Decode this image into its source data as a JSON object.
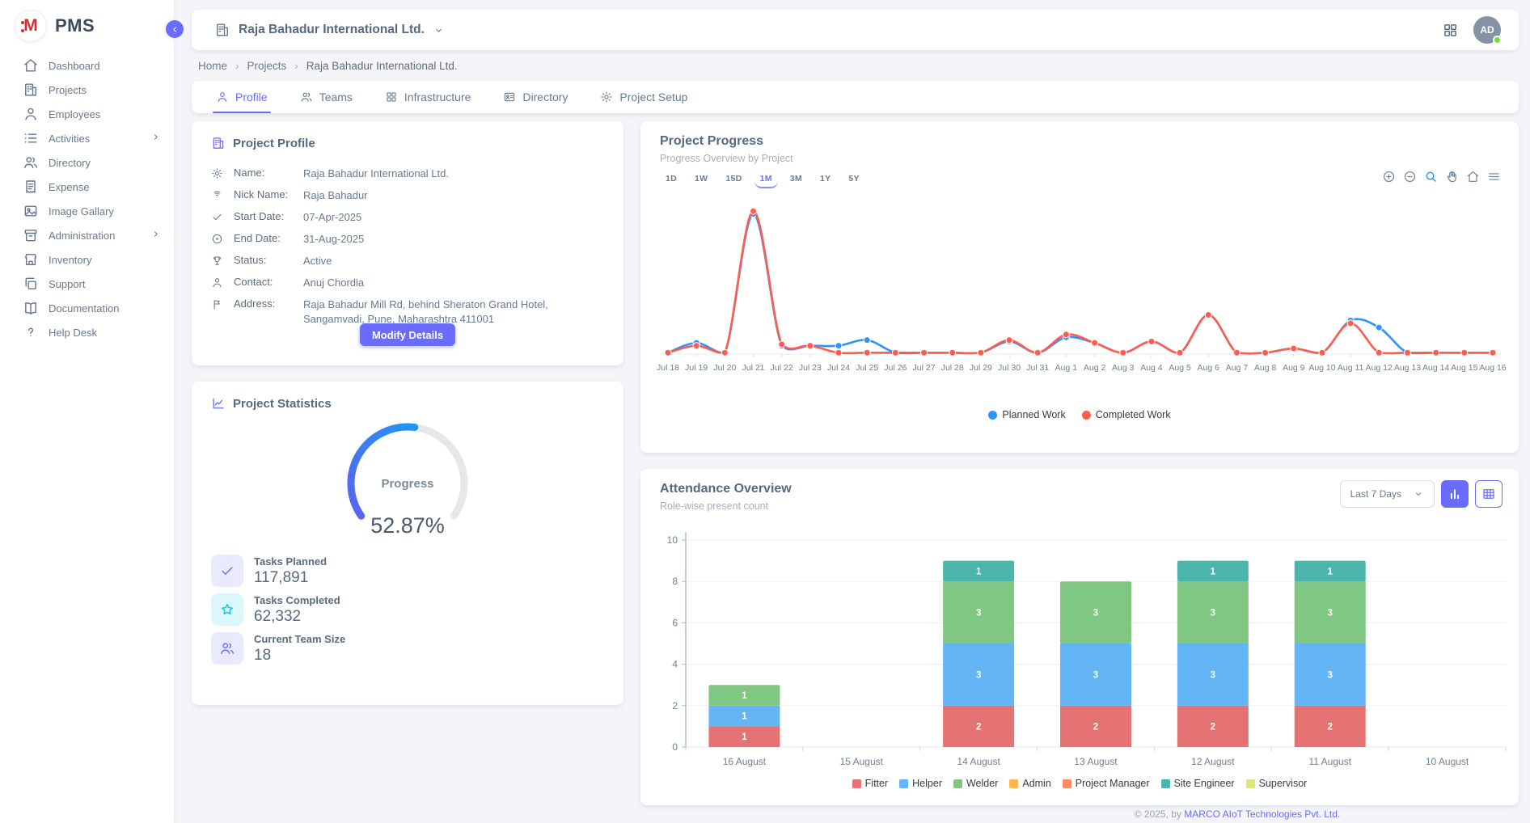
{
  "brand": {
    "logo_letter": "M",
    "name": "PMS"
  },
  "sidebar": {
    "items": [
      {
        "label": "Dashboard",
        "icon": "home",
        "chevron": false
      },
      {
        "label": "Projects",
        "icon": "building",
        "chevron": false
      },
      {
        "label": "Employees",
        "icon": "person",
        "chevron": false
      },
      {
        "label": "Activities",
        "icon": "list",
        "chevron": true
      },
      {
        "label": "Directory",
        "icon": "people",
        "chevron": false
      },
      {
        "label": "Expense",
        "icon": "receipt",
        "chevron": false
      },
      {
        "label": "Image Gallary",
        "icon": "image",
        "chevron": false
      },
      {
        "label": "Administration",
        "icon": "archive",
        "chevron": true
      },
      {
        "label": "Inventory",
        "icon": "store",
        "chevron": false
      },
      {
        "label": "Support",
        "icon": "copy",
        "chevron": false
      },
      {
        "label": "Documentation",
        "icon": "book",
        "chevron": false
      },
      {
        "label": "Help Desk",
        "icon": "question",
        "chevron": false
      }
    ]
  },
  "header": {
    "company": "Raja Bahadur International Ltd.",
    "avatar_initials": "AD"
  },
  "breadcrumb": [
    "Home",
    "Projects",
    "Raja Bahadur International Ltd."
  ],
  "tabs": [
    {
      "label": "Profile",
      "icon": "person",
      "active": true
    },
    {
      "label": "Teams",
      "icon": "people",
      "active": false
    },
    {
      "label": "Infrastructure",
      "icon": "grid",
      "active": false
    },
    {
      "label": "Directory",
      "icon": "idcard",
      "active": false
    },
    {
      "label": "Project Setup",
      "icon": "gear",
      "active": false
    }
  ],
  "profile_card": {
    "title": "Project Profile",
    "fields": [
      {
        "icon": "gear",
        "label": "Name:",
        "value": "Raja Bahadur International Ltd."
      },
      {
        "icon": "fingerprint",
        "label": "Nick Name:",
        "value": "Raja Bahadur"
      },
      {
        "icon": "check",
        "label": "Start Date:",
        "value": "07-Apr-2025"
      },
      {
        "icon": "target",
        "label": "End Date:",
        "value": "31-Aug-2025"
      },
      {
        "icon": "trophy",
        "label": "Status:",
        "value": "Active"
      },
      {
        "icon": "person",
        "label": "Contact:",
        "value": "Anuj Chordia"
      },
      {
        "icon": "flag",
        "label": "Address:",
        "value": "Raja Bahadur Mill Rd, behind Sheraton Grand Hotel, Sangamvadi, Pune, Maharashtra 411001"
      }
    ],
    "button_label": "Modify Details"
  },
  "stats_card": {
    "title": "Project Statistics",
    "gauge": {
      "label": "Progress",
      "display": "52.87%",
      "percent": 52.87,
      "start_color": "#5a63ee",
      "end_color": "#2196f3",
      "track_color": "#e7e7e9"
    },
    "items": [
      {
        "icon": "check",
        "tint": "#696cff",
        "bg": "rgba(105,108,255,0.14)",
        "label": "Tasks Planned",
        "value": "117,891"
      },
      {
        "icon": "star",
        "tint": "#03c3ec",
        "bg": "rgba(3,195,236,0.14)",
        "label": "Tasks Completed",
        "value": "62,332"
      },
      {
        "icon": "people",
        "tint": "#696cff",
        "bg": "rgba(105,108,255,0.14)",
        "label": "Current Team Size",
        "value": "18"
      }
    ]
  },
  "progress_card": {
    "title": "Project Progress",
    "subtitle": "Progress Overview by Project",
    "ranges": [
      "1D",
      "1W",
      "15D",
      "1M",
      "3M",
      "1Y",
      "5Y"
    ],
    "active_range": "1M",
    "toolbar": [
      "plus-circle",
      "minus-circle",
      "zoom",
      "hand",
      "home",
      "menu"
    ]
  },
  "attendance_card": {
    "title": "Attendance Overview",
    "subtitle": "Role-wise present count",
    "dropdown_value": "Last 7 Days"
  },
  "chart_data": [
    {
      "type": "line",
      "title": "Project Progress",
      "x": [
        "Jul 18",
        "Jul 19",
        "Jul 20",
        "Jul 21",
        "Jul 22",
        "Jul 23",
        "Jul 24",
        "Jul 25",
        "Jul 26",
        "Jul 27",
        "Jul 28",
        "Jul 29",
        "Jul 30",
        "Jul 31",
        "Aug 1",
        "Aug 2",
        "Aug 3",
        "Aug 4",
        "Aug 5",
        "Aug 6",
        "Aug 7",
        "Aug 8",
        "Aug 9",
        "Aug 10",
        "Aug 11",
        "Aug 12",
        "Aug 13",
        "Aug 14",
        "Aug 15",
        "Aug 16"
      ],
      "series": [
        {
          "name": "Planned Work",
          "color": "#2e93fa",
          "values": [
            1,
            8,
            1,
            100,
            6,
            6,
            6,
            10,
            1,
            1,
            1,
            1,
            9,
            1,
            12,
            8,
            1,
            9,
            1,
            28,
            1,
            1,
            4,
            1,
            24,
            19,
            1,
            1,
            1,
            1
          ]
        },
        {
          "name": "Completed Work",
          "color": "#ff5b50",
          "values": [
            1,
            6,
            1,
            102,
            7,
            6,
            1,
            1,
            1,
            1,
            1,
            1,
            10,
            1,
            14,
            8,
            1,
            9,
            1,
            28,
            1,
            1,
            4,
            1,
            22,
            1,
            1,
            1,
            1,
            1
          ]
        }
      ],
      "y_axis_hidden": true,
      "legend_position": "bottom"
    },
    {
      "type": "bar",
      "stacked": true,
      "title": "Attendance Overview",
      "categories": [
        "16 August",
        "15 August",
        "14 August",
        "13 August",
        "12 August",
        "11 August",
        "10 August"
      ],
      "series": [
        {
          "name": "Fitter",
          "color": "#e57373",
          "values": [
            1,
            0,
            2,
            2,
            2,
            2,
            0
          ]
        },
        {
          "name": "Helper",
          "color": "#64b5f6",
          "values": [
            1,
            0,
            3,
            3,
            3,
            3,
            0
          ]
        },
        {
          "name": "Welder",
          "color": "#81c784",
          "values": [
            1,
            0,
            3,
            3,
            3,
            3,
            0
          ]
        },
        {
          "name": "Admin",
          "color": "#ffb74d",
          "values": [
            0,
            0,
            0,
            0,
            0,
            0,
            0
          ]
        },
        {
          "name": "Project Manager",
          "color": "#ff8a65",
          "values": [
            0,
            0,
            0,
            0,
            0,
            0,
            0
          ]
        },
        {
          "name": "Site Engineer",
          "color": "#4db6ac",
          "values": [
            0,
            0,
            1,
            0,
            1,
            1,
            0
          ]
        },
        {
          "name": "Supervisor",
          "color": "#dce775",
          "values": [
            0,
            0,
            0,
            0,
            0,
            0,
            0
          ]
        }
      ],
      "ylim": [
        0,
        10
      ],
      "ytick_step": 2,
      "grid": true,
      "legend_position": "bottom"
    }
  ],
  "footer": {
    "prefix": "© 2025, by ",
    "company": "MARCO AIoT Technologies Pvt. Ltd."
  }
}
